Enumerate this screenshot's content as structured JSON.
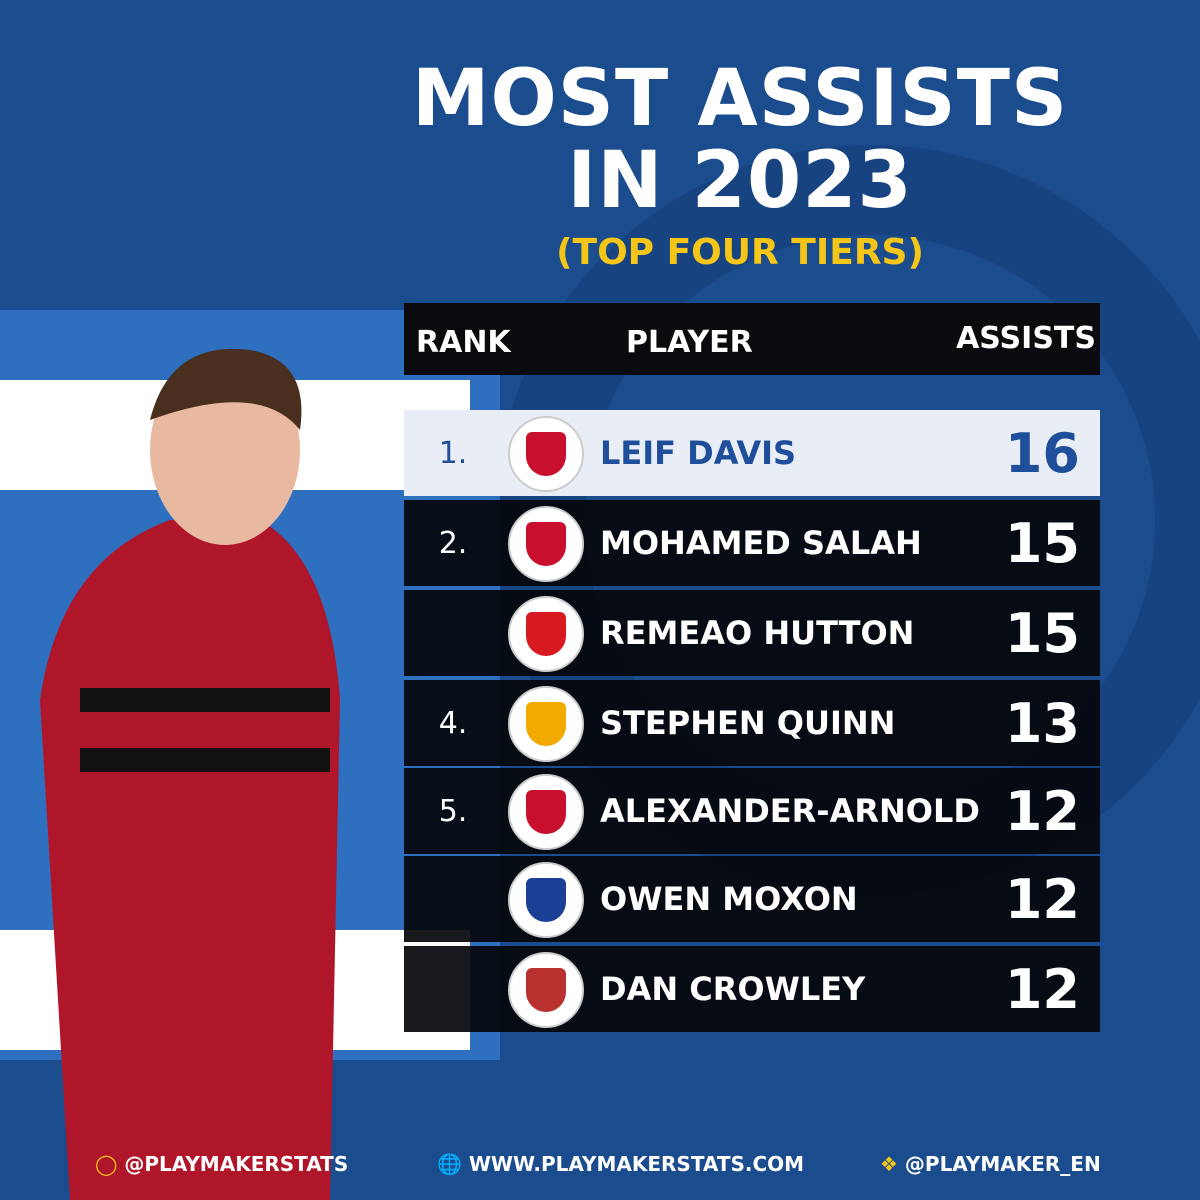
{
  "header": {
    "title_lines": [
      "MOST ASSISTS",
      "IN 2023"
    ],
    "subtitle": "(TOP FOUR TIERS)"
  },
  "table": {
    "columns": [
      "RANK",
      "PLAYER",
      "ASSISTS"
    ],
    "rows": [
      {
        "rank": "1.",
        "player": "LEIF DAVIS",
        "assists": "16",
        "badge": "#c8102e"
      },
      {
        "rank": "2.",
        "player": "MOHAMED SALAH",
        "assists": "15",
        "badge": "#c8102e"
      },
      {
        "player": "REMEAO HUTTON",
        "assists": "15",
        "badge": "#d71920"
      },
      {
        "rank": "4.",
        "player": "STEPHEN QUINN",
        "assists": "13",
        "badge": "#f2a900"
      },
      {
        "rank": "5.",
        "player": "ALEXANDER-ARNOLD",
        "assists": "12",
        "badge": "#c8102e"
      },
      {
        "player": "OWEN MOXON",
        "assists": "12",
        "badge": "#1b3f94"
      },
      {
        "player": "DAN CROWLEY",
        "assists": "12",
        "badge": "#b8312f"
      }
    ]
  },
  "footer": {
    "instagram": "@PLAYMAKERSTATS",
    "website": "WWW.PLAYMAKERSTATS.COM",
    "twitter": "@PLAYMAKER_EN"
  }
}
